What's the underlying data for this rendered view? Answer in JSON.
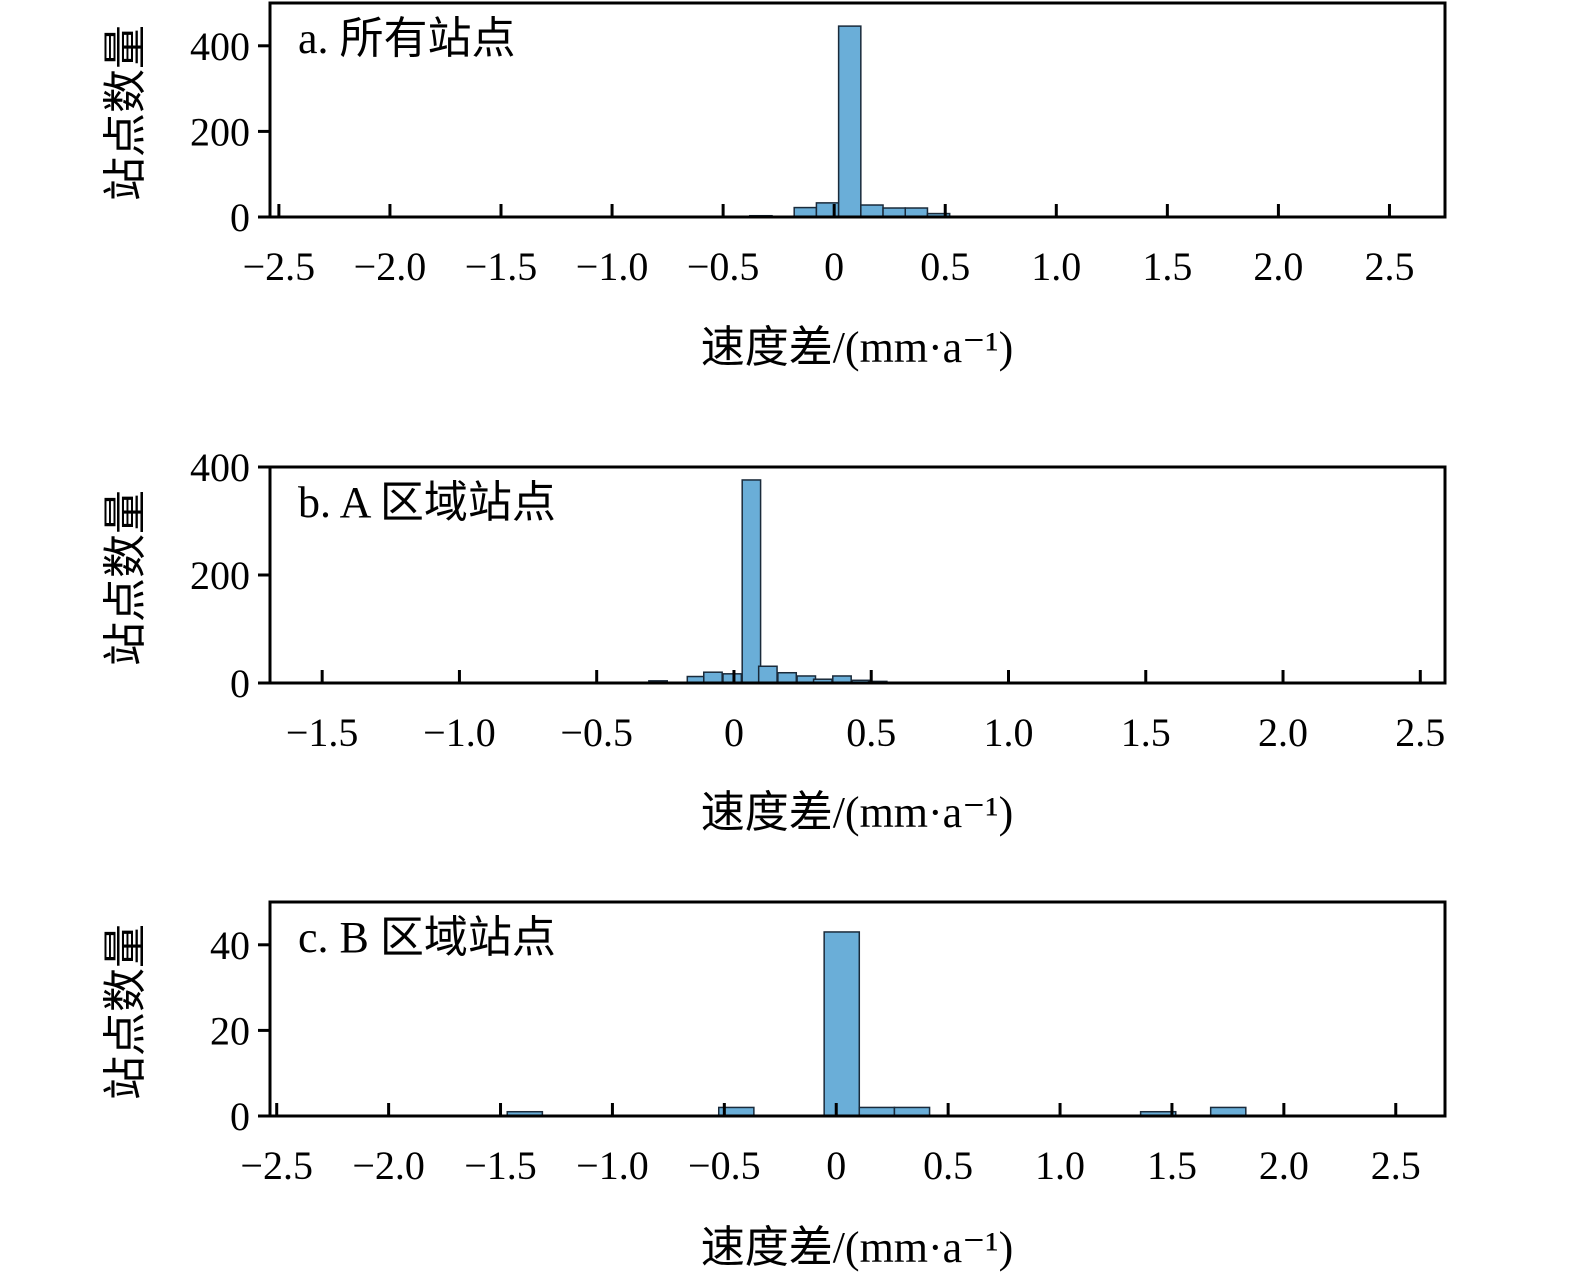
{
  "chart_data": [
    {
      "type": "bar",
      "title": "a. 所有站点",
      "xlabel": "速度差/(mm·a⁻¹)",
      "ylabel": "站点数量",
      "xlim": [
        -2.54,
        2.75
      ],
      "ylim": [
        0,
        500
      ],
      "xticks": [
        -2.5,
        -2.0,
        -1.5,
        -1.0,
        -0.5,
        0,
        0.5,
        1.0,
        1.5,
        2.0,
        2.5
      ],
      "xtick_labels": [
        "−2.5",
        "−2.0",
        "−1.5",
        "−1.0",
        "−0.5",
        "0",
        "0.5",
        "1.0",
        "1.5",
        "2.0",
        "2.5"
      ],
      "yticks": [
        0,
        200,
        400
      ],
      "ytick_labels": [
        "0",
        "200",
        "400"
      ],
      "bin_width": 0.1,
      "bins": [
        {
          "x0": -0.58,
          "count": 1
        },
        {
          "x0": -0.38,
          "count": 3
        },
        {
          "x0": -0.18,
          "count": 22
        },
        {
          "x0": -0.08,
          "count": 33
        },
        {
          "x0": 0.02,
          "count": 446
        },
        {
          "x0": 0.12,
          "count": 28
        },
        {
          "x0": 0.22,
          "count": 21
        },
        {
          "x0": 0.32,
          "count": 21
        },
        {
          "x0": 0.42,
          "count": 8
        },
        {
          "x0": 0.62,
          "count": 1
        }
      ],
      "grid": false,
      "bar_color": "#6aaed8",
      "edge_color": "#1a2a3a"
    },
    {
      "type": "bar",
      "title": "b. A 区域站点",
      "xlabel": "速度差/(mm·a⁻¹)",
      "ylabel": "站点数量",
      "xlim": [
        -1.69,
        2.59
      ],
      "ylim": [
        0,
        400
      ],
      "xticks": [
        -1.5,
        -1.0,
        -0.5,
        0,
        0.5,
        1.0,
        1.5,
        2.0,
        2.5
      ],
      "xtick_labels": [
        "−1.5",
        "−1.0",
        "−0.5",
        "0",
        "0.5",
        "1.0",
        "1.5",
        "2.0",
        "2.5"
      ],
      "yticks": [
        0,
        200,
        400
      ],
      "ytick_labels": [
        "0",
        "200",
        "400"
      ],
      "bin_width": 0.067,
      "bins": [
        {
          "x0": -0.71,
          "count": 1
        },
        {
          "x0": -0.57,
          "count": 1
        },
        {
          "x0": -0.37,
          "count": 1
        },
        {
          "x0": -0.31,
          "count": 4
        },
        {
          "x0": -0.17,
          "count": 12
        },
        {
          "x0": -0.11,
          "count": 20
        },
        {
          "x0": -0.04,
          "count": 17
        },
        {
          "x0": 0.03,
          "count": 376
        },
        {
          "x0": 0.09,
          "count": 31
        },
        {
          "x0": 0.16,
          "count": 19
        },
        {
          "x0": 0.23,
          "count": 13
        },
        {
          "x0": 0.29,
          "count": 7
        },
        {
          "x0": 0.36,
          "count": 13
        },
        {
          "x0": 0.43,
          "count": 5
        },
        {
          "x0": 0.49,
          "count": 3
        },
        {
          "x0": 0.63,
          "count": 1
        },
        {
          "x0": 0.69,
          "count": 1
        },
        {
          "x0": 0.89,
          "count": 1
        }
      ],
      "grid": false,
      "bar_color": "#6aaed8",
      "edge_color": "#1a2a3a"
    },
    {
      "type": "bar",
      "title": "c. B 区域站点",
      "xlabel": "速度差/(mm·a⁻¹)",
      "ylabel": "站点数量",
      "xlim": [
        -2.53,
        2.72
      ],
      "ylim": [
        0,
        50
      ],
      "xticks": [
        -2.5,
        -2.0,
        -1.5,
        -1.0,
        -0.5,
        0,
        0.5,
        1.0,
        1.5,
        2.0,
        2.5
      ],
      "xtick_labels": [
        "−2.5",
        "−2.0",
        "−1.5",
        "−1.0",
        "−0.5",
        "0",
        "0.5",
        "1.0",
        "1.5",
        "2.0",
        "2.5"
      ],
      "yticks": [
        0,
        20,
        40
      ],
      "ytick_labels": [
        "0",
        "20",
        "40"
      ],
      "bin_width": 0.157,
      "bins": [
        {
          "x0": -1.47,
          "count": 1
        },
        {
          "x0": -0.525,
          "count": 2
        },
        {
          "x0": -0.054,
          "count": 43
        },
        {
          "x0": 0.103,
          "count": 2
        },
        {
          "x0": 0.26,
          "count": 2
        },
        {
          "x0": 1.36,
          "count": 1
        },
        {
          "x0": 1.673,
          "count": 2
        }
      ],
      "grid": false,
      "bar_color": "#6aaed8",
      "edge_color": "#1a2a3a"
    }
  ]
}
